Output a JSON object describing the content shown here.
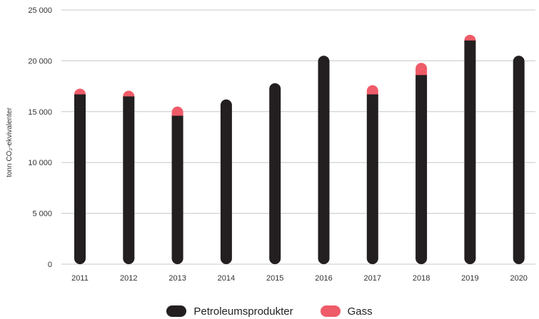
{
  "chart_data": {
    "type": "bar",
    "stacked": true,
    "categories": [
      "2011",
      "2012",
      "2013",
      "2014",
      "2015",
      "2016",
      "2017",
      "2018",
      "2019",
      "2020"
    ],
    "series": [
      {
        "name": "Petroleumsprodukter",
        "color": "#231f20",
        "values": [
          16700,
          16500,
          14600,
          16200,
          17800,
          20500,
          16700,
          18600,
          22000,
          20500
        ]
      },
      {
        "name": "Gass",
        "color": "#ef5b68",
        "values": [
          400,
          500,
          900,
          0,
          0,
          0,
          900,
          1200,
          100,
          0
        ]
      }
    ],
    "title": "",
    "xlabel": "",
    "ylabel": "tonn CO₂-ekvivalenter",
    "ylim": [
      0,
      25000
    ],
    "yticks": [
      "0",
      "5 000",
      "10 000",
      "15 000",
      "20 000",
      "25 000"
    ],
    "ytick_values": [
      0,
      5000,
      10000,
      15000,
      20000,
      25000
    ],
    "grid": true,
    "legend_position": "bottom-center"
  }
}
